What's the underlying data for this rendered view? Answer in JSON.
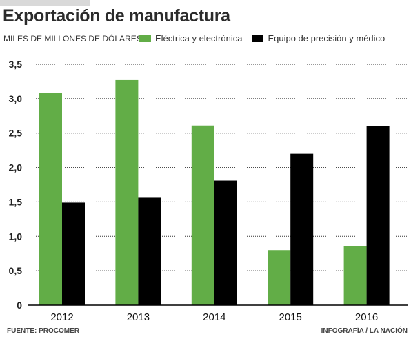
{
  "header": {
    "title": "Exportación de manufactura",
    "unit_label": "MILES DE MILLONES DE DÓLARES"
  },
  "legend": [
    {
      "label": "Eléctrica y electrónica",
      "color": "#62ad47"
    },
    {
      "label": "Equipo de precisión y médico",
      "color": "#000000"
    }
  ],
  "footer": {
    "source": "FUENTE: PROCOMER",
    "credit": "INFOGRAFÍA / LA NACIÓN"
  },
  "chart_data": {
    "type": "bar",
    "categories": [
      "2012",
      "2013",
      "2014",
      "2015",
      "2016"
    ],
    "series": [
      {
        "name": "Eléctrica y electrónica",
        "color": "#62ad47",
        "values": [
          3.08,
          3.27,
          2.61,
          0.8,
          0.86
        ]
      },
      {
        "name": "Equipo de precisión y médico",
        "color": "#000000",
        "values": [
          1.49,
          1.56,
          1.81,
          2.2,
          2.6
        ]
      }
    ],
    "yticks": [
      "0",
      "0,5",
      "1,0",
      "1,5",
      "2,0",
      "2,5",
      "3,0",
      "3,5"
    ],
    "ylim": [
      0,
      3.5
    ],
    "grid": "dotted horizontal",
    "legend_position": "top"
  }
}
